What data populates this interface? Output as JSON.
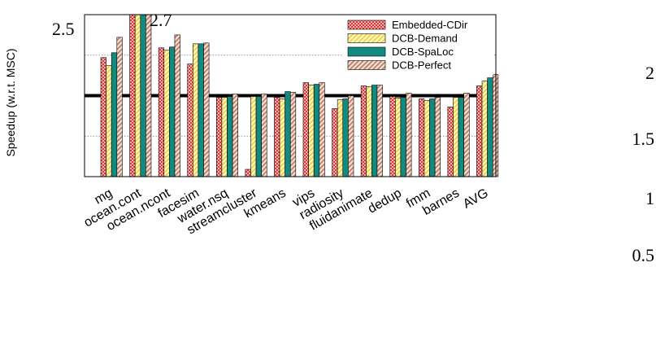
{
  "chart_data": {
    "type": "bar",
    "title": "",
    "xlabel": "",
    "ylabel": "Speedup (w.r.t. MSC)",
    "ylim": [
      0.5,
      2.5
    ],
    "y_ticks": [
      "2.5",
      "2",
      "1.5",
      "1",
      "0.5"
    ],
    "baseline": 1.5,
    "grid": true,
    "legend_position": "top-right",
    "overflow_label": "2.7",
    "overflow_label_category": "ocean.cont",
    "categories": [
      "mg",
      "ocean.cont",
      "ocean.ncont",
      "facesim",
      "water.nsq",
      "streamcluster",
      "kmeans",
      "vips",
      "radiosity",
      "fluidanimate",
      "dedup",
      "fmm",
      "barnes",
      "AVG"
    ],
    "series": [
      {
        "name": "Embedded-CDir",
        "color": "#e06666",
        "pattern": "checker",
        "values": [
          1.97,
          2.7,
          2.09,
          1.89,
          1.48,
          0.59,
          1.48,
          1.66,
          1.34,
          1.62,
          1.49,
          1.46,
          1.36,
          1.62
        ]
      },
      {
        "name": "DCB-Demand",
        "color": "#ffef8a",
        "pattern": "lines",
        "values": [
          1.87,
          2.7,
          2.06,
          2.14,
          1.48,
          1.49,
          1.46,
          1.63,
          1.45,
          1.61,
          1.47,
          1.44,
          1.48,
          1.68
        ]
      },
      {
        "name": "DCB-SpaLoc",
        "color": "#138a80",
        "pattern": "solid",
        "values": [
          2.03,
          2.7,
          2.1,
          2.14,
          1.49,
          1.49,
          1.55,
          1.64,
          1.46,
          1.63,
          1.48,
          1.46,
          1.48,
          1.72
        ]
      },
      {
        "name": "DCB-Perfect",
        "color": "#e0ad99",
        "pattern": "lines",
        "values": [
          2.22,
          2.7,
          2.25,
          2.15,
          1.52,
          1.52,
          1.54,
          1.66,
          1.5,
          1.63,
          1.53,
          1.48,
          1.53,
          1.76
        ]
      }
    ]
  }
}
